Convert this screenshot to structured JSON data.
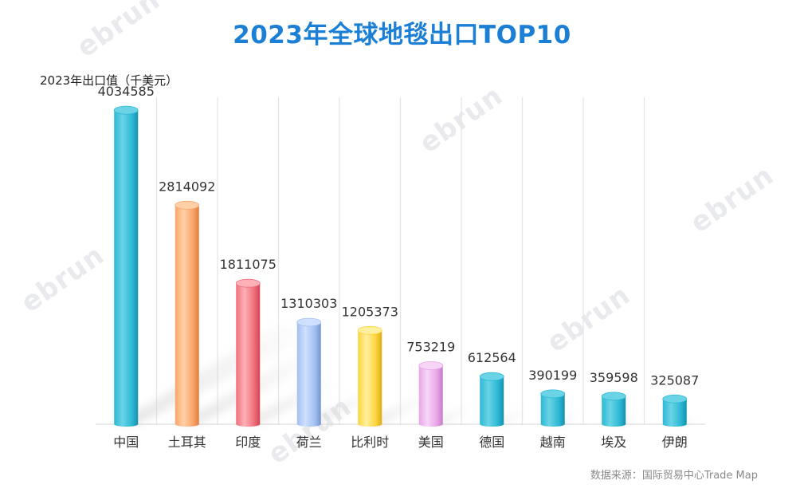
{
  "chart_data": {
    "type": "bar",
    "title": "2023年全球地毯出口TOP10",
    "ylabel": "2023年出口值（千美元）",
    "xlabel": "",
    "categories": [
      "中国",
      "土耳其",
      "印度",
      "荷兰",
      "比利时",
      "美国",
      "德国",
      "越南",
      "埃及",
      "伊朗"
    ],
    "values": [
      4034585,
      2814092,
      1811075,
      1310303,
      1205373,
      753219,
      612564,
      390199,
      359598,
      325087
    ],
    "value_labels": [
      "4034585",
      "2814092",
      "1811075",
      "1310303",
      "1205373",
      "753219",
      "612564",
      "390199",
      "359598",
      "325087"
    ],
    "ylim": [
      0,
      4200000
    ],
    "grid": true,
    "source": "数据来源：国际贸易中心Trade Map",
    "colors": [
      {
        "light": "#6ad4e6",
        "mid": "#2cb8d4",
        "dark": "#1591ae"
      },
      {
        "light": "#ffd0a8",
        "mid": "#f9a56a",
        "dark": "#e07e3f"
      },
      {
        "light": "#ffb0b8",
        "mid": "#f0707c",
        "dark": "#cf4554"
      },
      {
        "light": "#cfe0ff",
        "mid": "#a3bff0",
        "dark": "#7593d2"
      },
      {
        "light": "#fff0a0",
        "mid": "#fbd43c",
        "dark": "#dfab13"
      },
      {
        "light": "#f7d5f7",
        "mid": "#e8a6e8",
        "dark": "#c67cc6"
      },
      {
        "light": "#6ad4e6",
        "mid": "#2cb8d4",
        "dark": "#1591ae"
      },
      {
        "light": "#6ad4e6",
        "mid": "#2cb8d4",
        "dark": "#1591ae"
      },
      {
        "light": "#6ad4e6",
        "mid": "#2cb8d4",
        "dark": "#1591ae"
      },
      {
        "light": "#6ad4e6",
        "mid": "#2cb8d4",
        "dark": "#1591ae"
      }
    ]
  }
}
